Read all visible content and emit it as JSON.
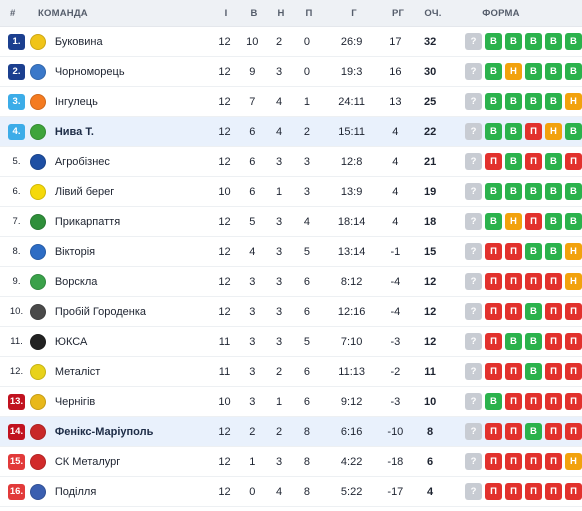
{
  "headers": {
    "pos": "#",
    "team": "КОМАНДА",
    "gp": "І",
    "w": "В",
    "d": "Н",
    "l": "П",
    "g": "Г",
    "gd": "РГ",
    "pts": "ОЧ.",
    "form": "ФОРМА"
  },
  "colors": {
    "promotion": "#1b3f8f",
    "promo_playoff": "#3cace8",
    "relegation_playoff": "#f15a24",
    "relegation": "#c1121f",
    "relegation_dark": "#e23a3a",
    "win": "#2bb24c",
    "draw": "#f2a20d",
    "loss": "#e2312d",
    "next": "#c8ccd3"
  },
  "rows": [
    {
      "pos": "1.",
      "badge": "promotion",
      "team": "Буковина",
      "logo": "#f0c419",
      "gp": "12",
      "w": "10",
      "d": "2",
      "l": "0",
      "g": "26:9",
      "gd": "17",
      "pts": "32",
      "form": [
        "?",
        "В",
        "В",
        "В",
        "В",
        "В"
      ],
      "hl": false
    },
    {
      "pos": "2.",
      "badge": "promotion",
      "team": "Чорноморець",
      "logo": "#3a78c9",
      "gp": "12",
      "w": "9",
      "d": "3",
      "l": "0",
      "g": "19:3",
      "gd": "16",
      "pts": "30",
      "form": [
        "?",
        "В",
        "Н",
        "В",
        "В",
        "В"
      ],
      "hl": false
    },
    {
      "pos": "3.",
      "badge": "promo_playoff",
      "team": "Інгулець",
      "logo": "#f47b20",
      "gp": "12",
      "w": "7",
      "d": "4",
      "l": "1",
      "g": "24:11",
      "gd": "13",
      "pts": "25",
      "form": [
        "?",
        "В",
        "В",
        "В",
        "В",
        "Н"
      ],
      "hl": false
    },
    {
      "pos": "4.",
      "badge": "promo_playoff",
      "team": "Нива Т.",
      "logo": "#3ea43b",
      "gp": "12",
      "w": "6",
      "d": "4",
      "l": "2",
      "g": "15:11",
      "gd": "4",
      "pts": "22",
      "form": [
        "?",
        "В",
        "В",
        "П",
        "Н",
        "В"
      ],
      "hl": true
    },
    {
      "pos": "5.",
      "badge": "plain",
      "team": "Агробізнес",
      "logo": "#1e4fa3",
      "gp": "12",
      "w": "6",
      "d": "3",
      "l": "3",
      "g": "12:8",
      "gd": "4",
      "pts": "21",
      "form": [
        "?",
        "П",
        "В",
        "П",
        "В",
        "П"
      ],
      "hl": false
    },
    {
      "pos": "6.",
      "badge": "plain",
      "team": "Лівий берег",
      "logo": "#f5d90a",
      "gp": "10",
      "w": "6",
      "d": "1",
      "l": "3",
      "g": "13:9",
      "gd": "4",
      "pts": "19",
      "form": [
        "?",
        "В",
        "В",
        "В",
        "В",
        "В"
      ],
      "hl": false
    },
    {
      "pos": "7.",
      "badge": "plain",
      "team": "Прикарпаття",
      "logo": "#2f8f3a",
      "gp": "12",
      "w": "5",
      "d": "3",
      "l": "4",
      "g": "18:14",
      "gd": "4",
      "pts": "18",
      "form": [
        "?",
        "В",
        "Н",
        "П",
        "В",
        "В"
      ],
      "hl": false
    },
    {
      "pos": "8.",
      "badge": "plain",
      "team": "Вікторія",
      "logo": "#2d6cc4",
      "gp": "12",
      "w": "4",
      "d": "3",
      "l": "5",
      "g": "13:14",
      "gd": "-1",
      "pts": "15",
      "form": [
        "?",
        "П",
        "П",
        "В",
        "В",
        "Н"
      ],
      "hl": false
    },
    {
      "pos": "9.",
      "badge": "plain",
      "team": "Ворскла",
      "logo": "#3aa14a",
      "gp": "12",
      "w": "3",
      "d": "3",
      "l": "6",
      "g": "8:12",
      "gd": "-4",
      "pts": "12",
      "form": [
        "?",
        "П",
        "П",
        "П",
        "П",
        "Н"
      ],
      "hl": false
    },
    {
      "pos": "10.",
      "badge": "plain",
      "team": "Пробій Городенка",
      "logo": "#4a4a4a",
      "gp": "12",
      "w": "3",
      "d": "3",
      "l": "6",
      "g": "12:16",
      "gd": "-4",
      "pts": "12",
      "form": [
        "?",
        "П",
        "П",
        "В",
        "П",
        "П"
      ],
      "hl": false
    },
    {
      "pos": "11.",
      "badge": "plain",
      "team": "ЮКСА",
      "logo": "#222222",
      "gp": "11",
      "w": "3",
      "d": "3",
      "l": "5",
      "g": "7:10",
      "gd": "-3",
      "pts": "12",
      "form": [
        "?",
        "П",
        "В",
        "В",
        "П",
        "П"
      ],
      "hl": false
    },
    {
      "pos": "12.",
      "badge": "plain",
      "team": "Металіст",
      "logo": "#e8d21a",
      "gp": "11",
      "w": "3",
      "d": "2",
      "l": "6",
      "g": "11:13",
      "gd": "-2",
      "pts": "11",
      "form": [
        "?",
        "П",
        "П",
        "В",
        "П",
        "П"
      ],
      "hl": false
    },
    {
      "pos": "13.",
      "badge": "relegation",
      "team": "Чернігів",
      "logo": "#e8b81a",
      "gp": "10",
      "w": "3",
      "d": "1",
      "l": "6",
      "g": "9:12",
      "gd": "-3",
      "pts": "10",
      "form": [
        "?",
        "В",
        "П",
        "П",
        "П",
        "П"
      ],
      "hl": false
    },
    {
      "pos": "14.",
      "badge": "relegation",
      "team": "Фенікс-Маріуполь",
      "logo": "#c82828",
      "gp": "12",
      "w": "2",
      "d": "2",
      "l": "8",
      "g": "6:16",
      "gd": "-10",
      "pts": "8",
      "form": [
        "?",
        "П",
        "П",
        "В",
        "П",
        "П"
      ],
      "hl": true
    },
    {
      "pos": "15.",
      "badge": "relegation_dark",
      "team": "СК Металург",
      "logo": "#d12a2a",
      "gp": "12",
      "w": "1",
      "d": "3",
      "l": "8",
      "g": "4:22",
      "gd": "-18",
      "pts": "6",
      "form": [
        "?",
        "П",
        "П",
        "П",
        "П",
        "Н"
      ],
      "hl": false
    },
    {
      "pos": "16.",
      "badge": "relegation_dark",
      "team": "Поділля",
      "logo": "#3a5fb0",
      "gp": "12",
      "w": "0",
      "d": "4",
      "l": "8",
      "g": "5:22",
      "gd": "-17",
      "pts": "4",
      "form": [
        "?",
        "П",
        "П",
        "П",
        "П",
        "П"
      ],
      "hl": false
    }
  ]
}
